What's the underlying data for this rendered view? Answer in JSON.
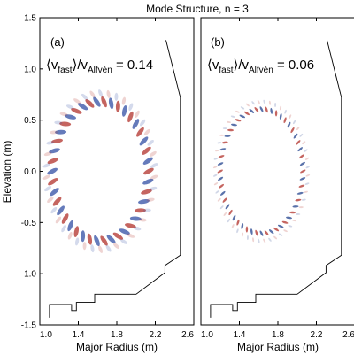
{
  "chart_data": [
    {
      "type": "mode-structure",
      "title": "Mode Structure, n = 3",
      "panel_label": "(a)",
      "annotation": {
        "prefix": "⟨v",
        "sub1": "fast",
        "mid": "⟩/v",
        "sub2": "Alfvén",
        "suffix": " = 0.14"
      },
      "xlabel": "Major Radius (m)",
      "ylabel": "Elevation (m)",
      "xlim": [
        1.0,
        2.6
      ],
      "ylim": [
        -1.5,
        1.5
      ],
      "xticks": [
        "1.0",
        "1.4",
        "1.8",
        "2.2",
        "2.6"
      ],
      "yticks": [
        "1.5",
        "1.0",
        "0.5",
        "0.0",
        "-0.5",
        "-1.0",
        "-1.5"
      ],
      "mode": {
        "r0": 1.63,
        "z0": 0.0,
        "a": 0.5,
        "kappa": 1.36,
        "n_lobes": 42,
        "lobe_len": 0.12,
        "lobe_wid": 0.045,
        "colors": [
          "#b53a33",
          "#3a56a8"
        ]
      }
    },
    {
      "type": "mode-structure",
      "panel_label": "(b)",
      "annotation": {
        "prefix": "⟨v",
        "sub1": "fast",
        "mid": "⟩/v",
        "sub2": "Alfvén",
        "suffix": " = 0.06"
      },
      "xlabel": "Major Radius (m)",
      "xlim": [
        1.0,
        2.6
      ],
      "ylim": [
        -1.5,
        1.5
      ],
      "xticks": [
        "1.0",
        "1.4",
        "1.8",
        "2.2",
        "2.6"
      ],
      "mode": {
        "r0": 1.63,
        "z0": 0.0,
        "a": 0.43,
        "kappa": 1.41,
        "n_lobes": 52,
        "lobe_len": 0.065,
        "lobe_wid": 0.022,
        "colors": [
          "#b53a33",
          "#2c4a92"
        ]
      }
    }
  ],
  "vessel_wall": [
    [
      2.31,
      1.28
    ],
    [
      2.46,
      0.72
    ],
    [
      2.46,
      -0.82
    ],
    [
      2.3,
      -0.92
    ],
    [
      2.3,
      -0.99
    ],
    [
      2.0,
      -1.2
    ],
    [
      1.57,
      -1.2
    ],
    [
      1.57,
      -1.28
    ],
    [
      1.38,
      -1.28
    ],
    [
      1.38,
      -1.36
    ],
    [
      1.33,
      -1.36
    ],
    [
      1.33,
      -1.3
    ],
    [
      1.1,
      -1.3
    ],
    [
      1.1,
      -1.43
    ]
  ]
}
